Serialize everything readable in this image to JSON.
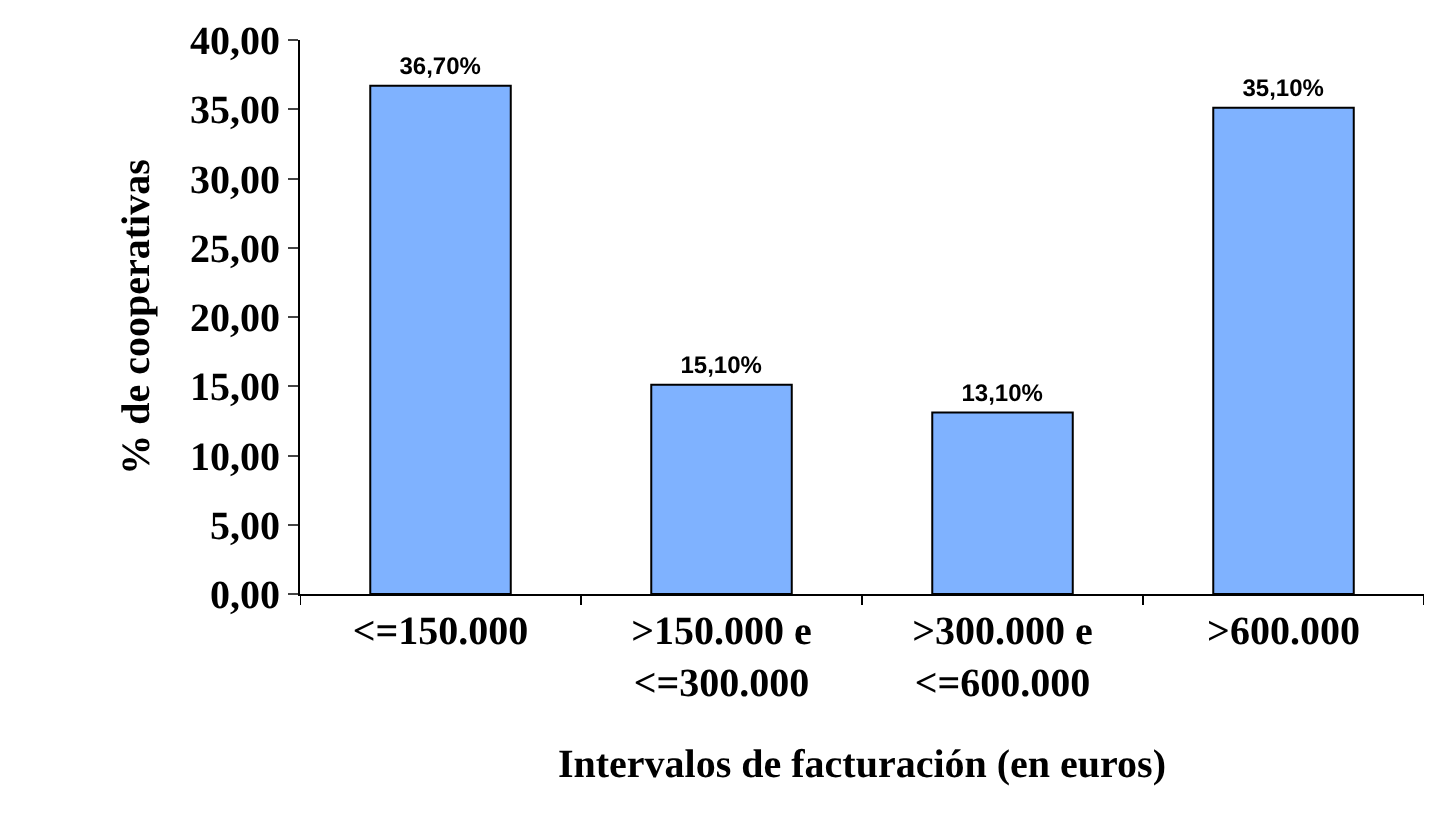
{
  "chart_data": {
    "type": "bar",
    "xlabel": "Intervalos de facturación (en euros)",
    "ylabel": "% de cooperativas",
    "categories": [
      "<=150.000",
      ">150.000 e\n<=300.000",
      ">300.000 e\n<=600.000",
      ">600.000"
    ],
    "values": [
      36.7,
      15.1,
      13.1,
      35.1
    ],
    "value_labels": [
      "36,70%",
      "15,10%",
      "13,10%",
      "35,10%"
    ],
    "color": "#7fb2ff",
    "ylim": [
      0,
      40
    ],
    "yticks": [
      {
        "value": 0,
        "label": "0,00"
      },
      {
        "value": 5,
        "label": "5,00"
      },
      {
        "value": 10,
        "label": "10,00"
      },
      {
        "value": 15,
        "label": "15,00"
      },
      {
        "value": 20,
        "label": "20,00"
      },
      {
        "value": 25,
        "label": "25,00"
      },
      {
        "value": 30,
        "label": "30,00"
      },
      {
        "value": 35,
        "label": "35,00"
      },
      {
        "value": 40,
        "label": "40,00"
      }
    ],
    "grid": false
  }
}
